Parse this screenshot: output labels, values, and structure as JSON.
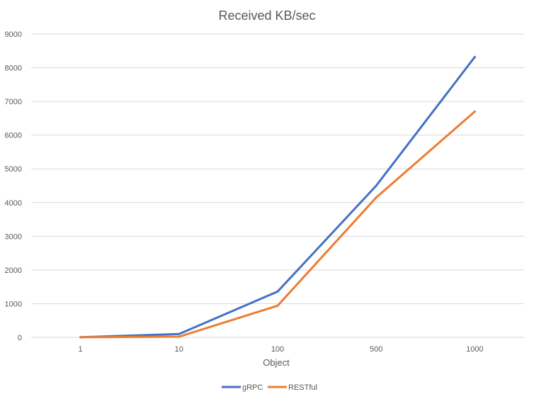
{
  "chart_data": {
    "type": "line",
    "title": "Received KB/sec",
    "xlabel": "Object",
    "ylabel": "",
    "categories": [
      "1",
      "10",
      "100",
      "500",
      "1000"
    ],
    "ylim": [
      0,
      9000
    ],
    "yticks": [
      0,
      1000,
      2000,
      3000,
      4000,
      5000,
      6000,
      7000,
      8000,
      9000
    ],
    "grid": true,
    "legend_position": "bottom",
    "series": [
      {
        "name": "gRPC",
        "color": "#4472C4",
        "values": [
          5,
          100,
          1360,
          4500,
          8320
        ]
      },
      {
        "name": "RESTful",
        "color": "#ED7D31",
        "values": [
          3,
          20,
          940,
          4150,
          6700
        ]
      }
    ]
  }
}
